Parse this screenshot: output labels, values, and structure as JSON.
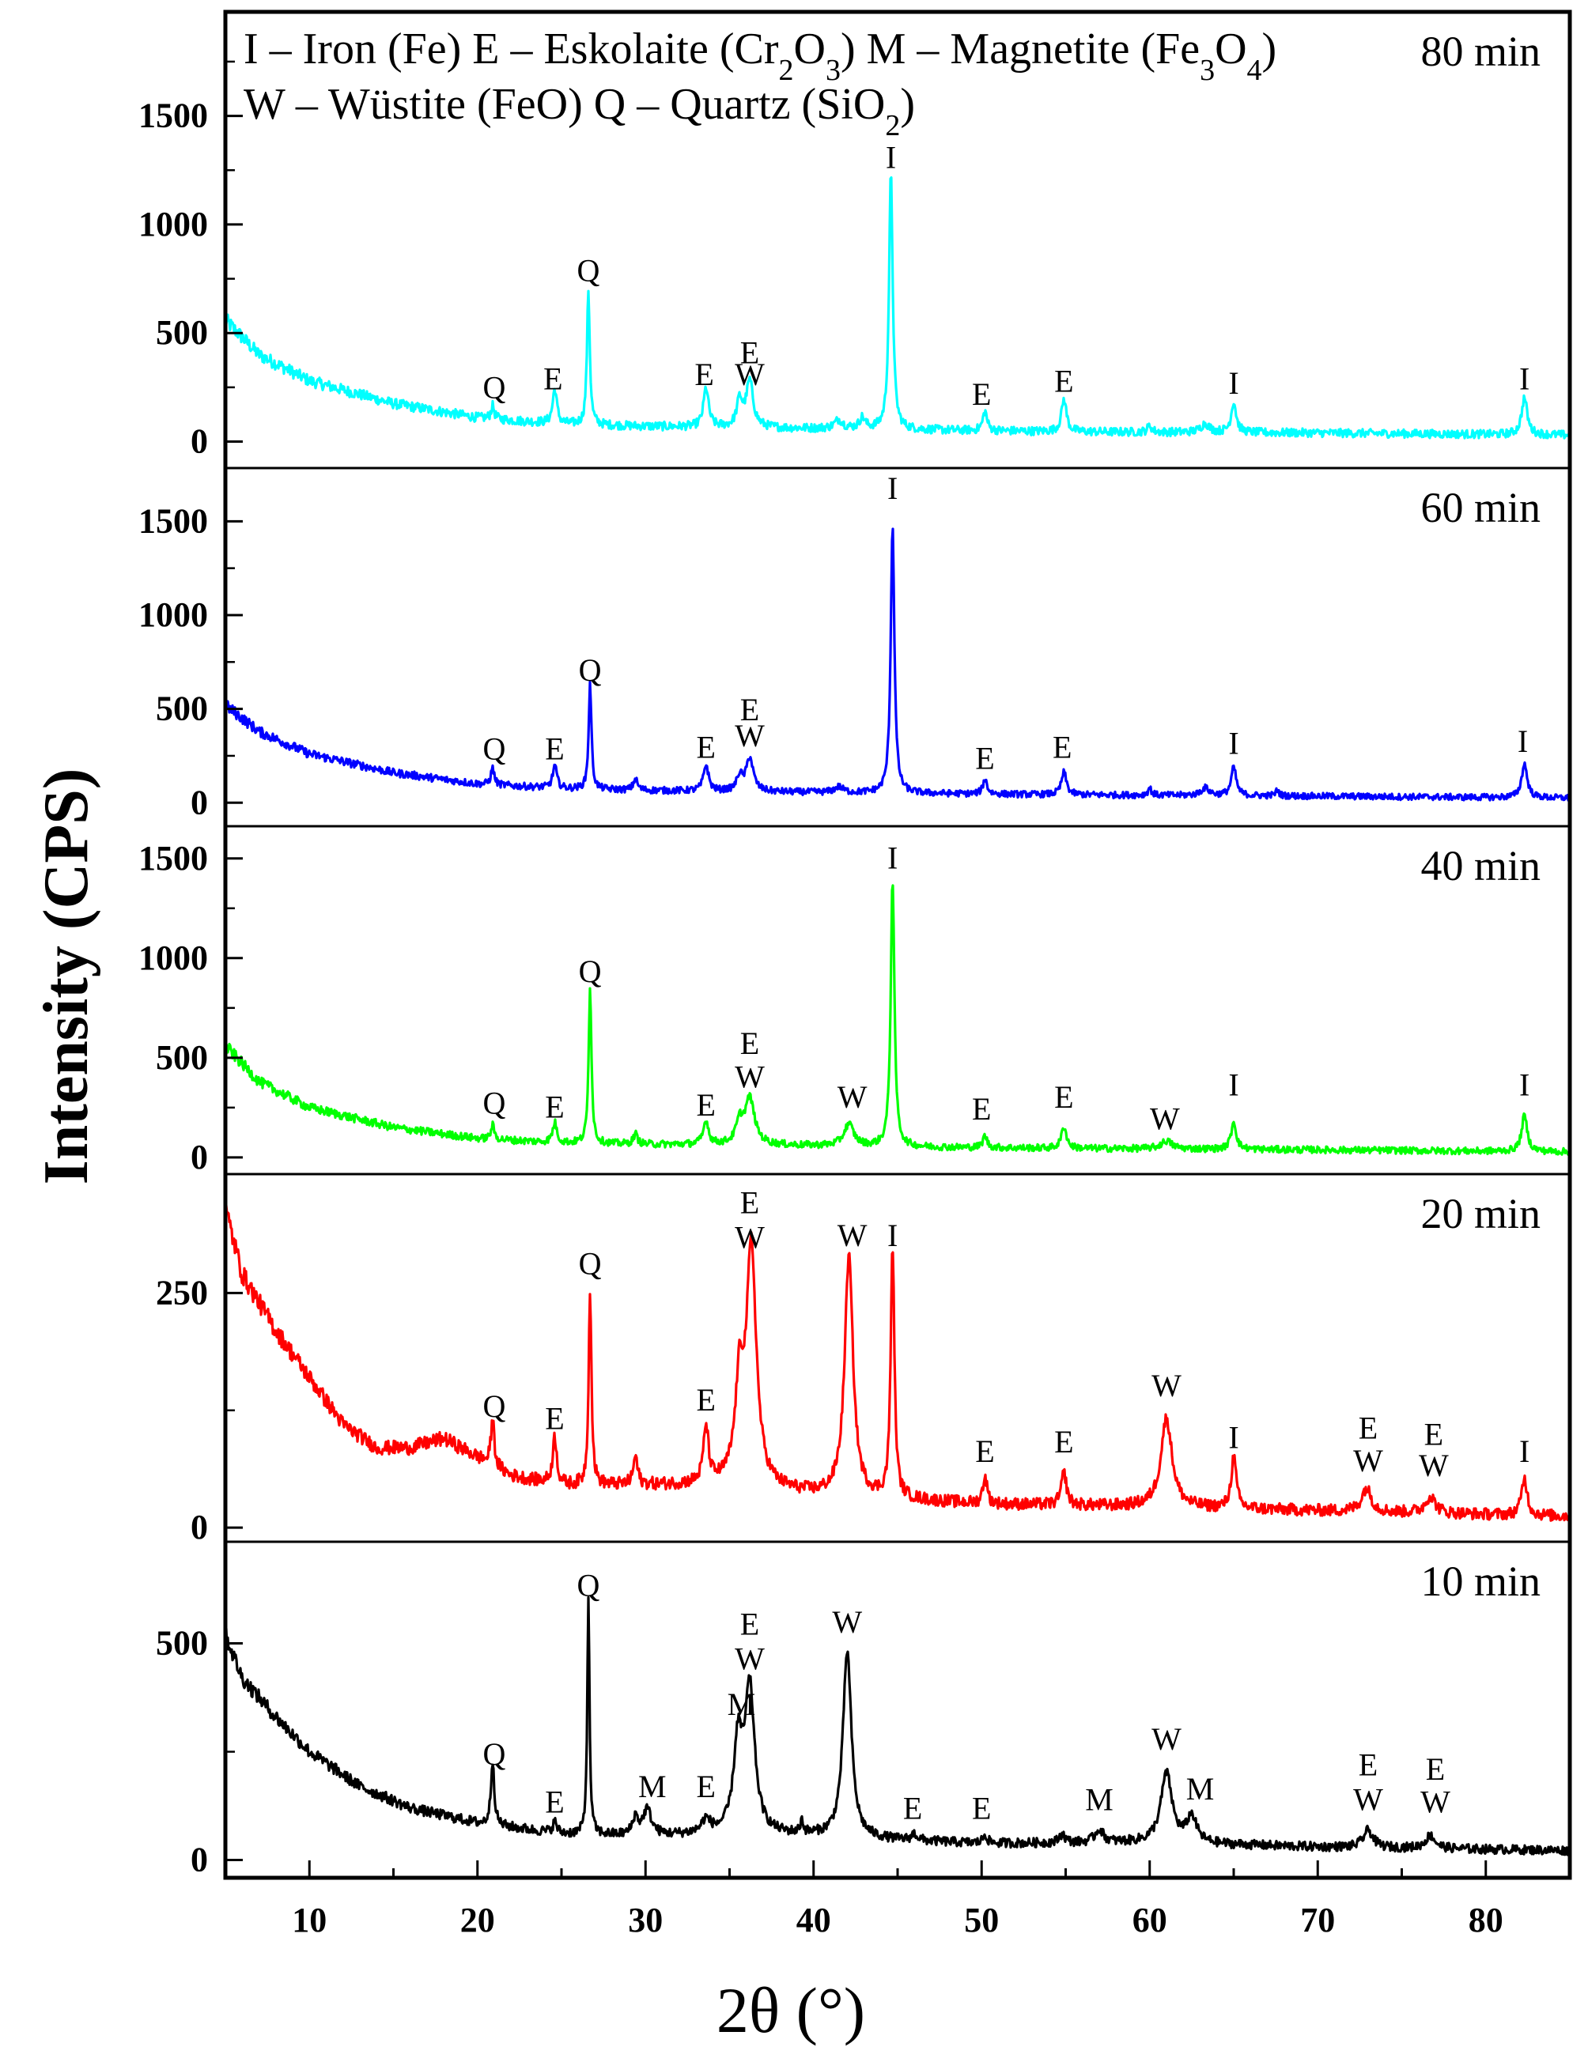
{
  "chart_data": {
    "type": "line",
    "title": "",
    "xlabel": "2θ (°)",
    "ylabel": "Intensity (CPS)",
    "xlim": [
      5,
      85
    ],
    "xticks": [
      10,
      20,
      30,
      40,
      50,
      60,
      70,
      80
    ],
    "legend_lines": [
      [
        "I – Iron (Fe)",
        "E – Eskolaite (Cr",
        "2",
        "O",
        "3",
        ")",
        "M – Magnetite (Fe",
        "3",
        "O",
        "4",
        ")"
      ],
      [
        "W – Wüstite (FeO)",
        "Q – Quartz (SiO",
        "2",
        ")"
      ]
    ],
    "legend_position": "top-left",
    "series": [
      {
        "name": "80 min",
        "color": "#00ffff",
        "ylim": [
          -100,
          1950
        ],
        "yticks": [
          0,
          500,
          1000,
          1500
        ],
        "baseline": [
          [
            5,
            560
          ],
          [
            7,
            400
          ],
          [
            10,
            280
          ],
          [
            15,
            175
          ],
          [
            20,
            110
          ],
          [
            25,
            80
          ],
          [
            30,
            70
          ],
          [
            35,
            65
          ],
          [
            40,
            60
          ],
          [
            45,
            55
          ],
          [
            55,
            45
          ],
          [
            70,
            40
          ],
          [
            85,
            30
          ]
        ],
        "peaks": [
          [
            20.9,
            60,
            0.12
          ],
          [
            24.6,
            160,
            0.15
          ],
          [
            26.6,
            620,
            0.1
          ],
          [
            33.6,
            180,
            0.18
          ],
          [
            35.6,
            120,
            0.2
          ],
          [
            36.2,
            210,
            0.25
          ],
          [
            41.5,
            40,
            0.3
          ],
          [
            42.9,
            50,
            0.2
          ],
          [
            44.6,
            1180,
            0.13
          ],
          [
            50.2,
            90,
            0.15
          ],
          [
            54.9,
            150,
            0.18
          ],
          [
            60.0,
            30,
            0.15
          ],
          [
            63.3,
            40,
            0.3
          ],
          [
            65.0,
            140,
            0.18
          ],
          [
            82.3,
            170,
            0.2
          ]
        ],
        "noise": 18,
        "peak_labels": [
          {
            "x": 21.0,
            "y": 200,
            "text": "Q"
          },
          {
            "x": 24.5,
            "y": 240,
            "text": "E"
          },
          {
            "x": 26.6,
            "y": 740,
            "text": "Q"
          },
          {
            "x": 33.5,
            "y": 260,
            "text": "E"
          },
          {
            "x": 36.2,
            "y": 360,
            "text": "E"
          },
          {
            "x": 36.2,
            "y": 260,
            "text": "W"
          },
          {
            "x": 44.6,
            "y": 1260,
            "text": "I"
          },
          {
            "x": 50.0,
            "y": 170,
            "text": "E"
          },
          {
            "x": 54.9,
            "y": 230,
            "text": "E"
          },
          {
            "x": 65.0,
            "y": 220,
            "text": "I"
          },
          {
            "x": 82.3,
            "y": 240,
            "text": "I"
          }
        ]
      },
      {
        "name": "60 min",
        "color": "#0000ff",
        "ylim": [
          -100,
          1750
        ],
        "yticks": [
          0,
          500,
          1000,
          1500
        ],
        "baseline": [
          [
            5,
            520
          ],
          [
            7,
            380
          ],
          [
            10,
            260
          ],
          [
            15,
            160
          ],
          [
            20,
            100
          ],
          [
            25,
            75
          ],
          [
            30,
            65
          ],
          [
            35,
            60
          ],
          [
            40,
            55
          ],
          [
            45,
            50
          ],
          [
            55,
            42
          ],
          [
            70,
            35
          ],
          [
            85,
            25
          ]
        ],
        "peaks": [
          [
            20.9,
            90,
            0.12
          ],
          [
            24.6,
            120,
            0.15
          ],
          [
            26.7,
            560,
            0.1
          ],
          [
            29.4,
            60,
            0.15
          ],
          [
            33.6,
            140,
            0.18
          ],
          [
            35.6,
            80,
            0.2
          ],
          [
            36.2,
            180,
            0.25
          ],
          [
            41.5,
            30,
            0.3
          ],
          [
            44.7,
            1430,
            0.13
          ],
          [
            50.2,
            80,
            0.15
          ],
          [
            54.9,
            120,
            0.18
          ],
          [
            60.0,
            40,
            0.12
          ],
          [
            63.3,
            40,
            0.3
          ],
          [
            65.0,
            150,
            0.18
          ],
          [
            67.6,
            30,
            0.12
          ],
          [
            82.3,
            180,
            0.2
          ]
        ],
        "noise": 16,
        "peak_labels": [
          {
            "x": 21.0,
            "y": 230,
            "text": "Q"
          },
          {
            "x": 24.6,
            "y": 230,
            "text": "E"
          },
          {
            "x": 26.7,
            "y": 650,
            "text": "Q"
          },
          {
            "x": 33.6,
            "y": 240,
            "text": "E"
          },
          {
            "x": 36.2,
            "y": 440,
            "text": "E"
          },
          {
            "x": 36.2,
            "y": 300,
            "text": "W"
          },
          {
            "x": 50.2,
            "y": 180,
            "text": "E"
          },
          {
            "x": 54.8,
            "y": 240,
            "text": "E"
          },
          {
            "x": 65.0,
            "y": 260,
            "text": "I"
          },
          {
            "x": 82.2,
            "y": 270,
            "text": "I"
          },
          {
            "x": 44.7,
            "y": 1620,
            "text": "I"
          }
        ]
      },
      {
        "name": "40 min",
        "color": "#00ff00",
        "ylim": [
          -60,
          1630
        ],
        "yticks": [
          0,
          500,
          1000,
          1500
        ],
        "baseline": [
          [
            5,
            560
          ],
          [
            7,
            380
          ],
          [
            10,
            250
          ],
          [
            15,
            150
          ],
          [
            20,
            95
          ],
          [
            25,
            72
          ],
          [
            30,
            65
          ],
          [
            35,
            62
          ],
          [
            40,
            58
          ],
          [
            45,
            52
          ],
          [
            55,
            45
          ],
          [
            70,
            38
          ],
          [
            85,
            28
          ]
        ],
        "peaks": [
          [
            20.9,
            70,
            0.12
          ],
          [
            24.6,
            100,
            0.15
          ],
          [
            26.7,
            790,
            0.1
          ],
          [
            29.4,
            50,
            0.15
          ],
          [
            33.6,
            120,
            0.18
          ],
          [
            35.6,
            100,
            0.25
          ],
          [
            36.2,
            230,
            0.35
          ],
          [
            42.1,
            110,
            0.35
          ],
          [
            44.7,
            1350,
            0.13
          ],
          [
            50.2,
            60,
            0.15
          ],
          [
            54.9,
            110,
            0.18
          ],
          [
            61.0,
            40,
            0.4
          ],
          [
            65.0,
            140,
            0.18
          ],
          [
            82.3,
            180,
            0.2
          ]
        ],
        "noise": 16,
        "peak_labels": [
          {
            "x": 21.0,
            "y": 220,
            "text": "Q"
          },
          {
            "x": 24.6,
            "y": 200,
            "text": "E"
          },
          {
            "x": 26.7,
            "y": 880,
            "text": "Q"
          },
          {
            "x": 33.6,
            "y": 210,
            "text": "E"
          },
          {
            "x": 36.2,
            "y": 520,
            "text": "E"
          },
          {
            "x": 36.2,
            "y": 350,
            "text": "W"
          },
          {
            "x": 42.3,
            "y": 250,
            "text": "W"
          },
          {
            "x": 44.7,
            "y": 1450,
            "text": "I"
          },
          {
            "x": 50.0,
            "y": 190,
            "text": "E"
          },
          {
            "x": 54.9,
            "y": 250,
            "text": "E"
          },
          {
            "x": 60.9,
            "y": 140,
            "text": "W"
          },
          {
            "x": 65.0,
            "y": 310,
            "text": "I"
          },
          {
            "x": 82.3,
            "y": 310,
            "text": "I"
          }
        ]
      },
      {
        "name": "20 min",
        "color": "#ff0000",
        "ylim": [
          -10,
          370
        ],
        "yticks": [
          0,
          250
        ],
        "baseline": [
          [
            5,
            340
          ],
          [
            6,
            270
          ],
          [
            8,
            210
          ],
          [
            10,
            160
          ],
          [
            12,
            110
          ],
          [
            14,
            85
          ],
          [
            16,
            85
          ],
          [
            18,
            95
          ],
          [
            20,
            75
          ],
          [
            22,
            55
          ],
          [
            25,
            45
          ],
          [
            30,
            45
          ],
          [
            35,
            45
          ],
          [
            40,
            35
          ],
          [
            45,
            30
          ],
          [
            50,
            25
          ],
          [
            60,
            22
          ],
          [
            70,
            18
          ],
          [
            85,
            12
          ]
        ],
        "peaks": [
          [
            20.9,
            50,
            0.12
          ],
          [
            24.6,
            50,
            0.15
          ],
          [
            26.7,
            210,
            0.1
          ],
          [
            29.4,
            30,
            0.15
          ],
          [
            33.6,
            60,
            0.18
          ],
          [
            35.6,
            100,
            0.3
          ],
          [
            36.3,
            250,
            0.35
          ],
          [
            42.1,
            255,
            0.3
          ],
          [
            44.7,
            270,
            0.13
          ],
          [
            50.2,
            30,
            0.15
          ],
          [
            54.9,
            35,
            0.18
          ],
          [
            61.0,
            95,
            0.4
          ],
          [
            65.0,
            55,
            0.18
          ],
          [
            72.9,
            25,
            0.35
          ],
          [
            76.7,
            18,
            0.35
          ],
          [
            82.3,
            40,
            0.2
          ]
        ],
        "noise": 6,
        "peak_labels": [
          {
            "x": 21.0,
            "y": 118,
            "text": "Q"
          },
          {
            "x": 24.6,
            "y": 105,
            "text": "E"
          },
          {
            "x": 26.7,
            "y": 270,
            "text": "Q"
          },
          {
            "x": 33.6,
            "y": 125,
            "text": "E"
          },
          {
            "x": 36.2,
            "y": 335,
            "text": "E"
          },
          {
            "x": 36.2,
            "y": 298,
            "text": "W"
          },
          {
            "x": 42.3,
            "y": 300,
            "text": "W"
          },
          {
            "x": 44.7,
            "y": 300,
            "text": "I"
          },
          {
            "x": 50.2,
            "y": 70,
            "text": "E"
          },
          {
            "x": 54.9,
            "y": 80,
            "text": "E"
          },
          {
            "x": 61.0,
            "y": 140,
            "text": "W"
          },
          {
            "x": 65.0,
            "y": 85,
            "text": "I"
          },
          {
            "x": 73.0,
            "y": 95,
            "text": "E"
          },
          {
            "x": 73.0,
            "y": 60,
            "text": "W"
          },
          {
            "x": 76.9,
            "y": 88,
            "text": "E"
          },
          {
            "x": 76.9,
            "y": 55,
            "text": "W"
          },
          {
            "x": 82.3,
            "y": 70,
            "text": "I"
          }
        ]
      },
      {
        "name": "10 min",
        "color": "#000000",
        "ylim": [
          -30,
          720
        ],
        "yticks": [
          0,
          500
        ],
        "baseline": [
          [
            5,
            520
          ],
          [
            6,
            420
          ],
          [
            8,
            330
          ],
          [
            10,
            250
          ],
          [
            13,
            170
          ],
          [
            16,
            120
          ],
          [
            20,
            85
          ],
          [
            25,
            60
          ],
          [
            30,
            55
          ],
          [
            35,
            60
          ],
          [
            40,
            55
          ],
          [
            45,
            45
          ],
          [
            50,
            38
          ],
          [
            60,
            40
          ],
          [
            70,
            30
          ],
          [
            85,
            22
          ]
        ],
        "peaks": [
          [
            20.9,
            150,
            0.12
          ],
          [
            24.6,
            25,
            0.15
          ],
          [
            26.6,
            540,
            0.08
          ],
          [
            29.4,
            40,
            0.2
          ],
          [
            30.1,
            60,
            0.3
          ],
          [
            33.6,
            30,
            0.3
          ],
          [
            35.5,
            200,
            0.3
          ],
          [
            36.2,
            330,
            0.35
          ],
          [
            39.3,
            30,
            0.1
          ],
          [
            42.0,
            430,
            0.3
          ],
          [
            46,
            15,
            0.2
          ],
          [
            50.2,
            20,
            0.15
          ],
          [
            54.8,
            20,
            0.2
          ],
          [
            57.0,
            30,
            0.3
          ],
          [
            61.0,
            160,
            0.4
          ],
          [
            62.5,
            60,
            0.35
          ],
          [
            73.0,
            40,
            0.35
          ],
          [
            76.7,
            30,
            0.35
          ]
        ],
        "noise": 10,
        "peak_labels": [
          {
            "x": 21.0,
            "y": 220,
            "text": "Q"
          },
          {
            "x": 24.6,
            "y": 110,
            "text": "E"
          },
          {
            "x": 26.6,
            "y": 610,
            "text": "Q"
          },
          {
            "x": 30.4,
            "y": 145,
            "text": "M"
          },
          {
            "x": 33.6,
            "y": 145,
            "text": "E"
          },
          {
            "x": 35.7,
            "y": 335,
            "text": "M"
          },
          {
            "x": 36.2,
            "y": 520,
            "text": "E"
          },
          {
            "x": 36.2,
            "y": 440,
            "text": "W"
          },
          {
            "x": 42.0,
            "y": 525,
            "text": "W"
          },
          {
            "x": 45.9,
            "y": 95,
            "text": "E"
          },
          {
            "x": 50.0,
            "y": 95,
            "text": "E"
          },
          {
            "x": 57.0,
            "y": 115,
            "text": "M"
          },
          {
            "x": 61.0,
            "y": 255,
            "text": "W"
          },
          {
            "x": 63.0,
            "y": 140,
            "text": "M"
          },
          {
            "x": 73.0,
            "y": 195,
            "text": "E"
          },
          {
            "x": 73.0,
            "y": 115,
            "text": "W"
          },
          {
            "x": 77.0,
            "y": 185,
            "text": "E"
          },
          {
            "x": 77.0,
            "y": 110,
            "text": "W"
          }
        ]
      }
    ]
  }
}
